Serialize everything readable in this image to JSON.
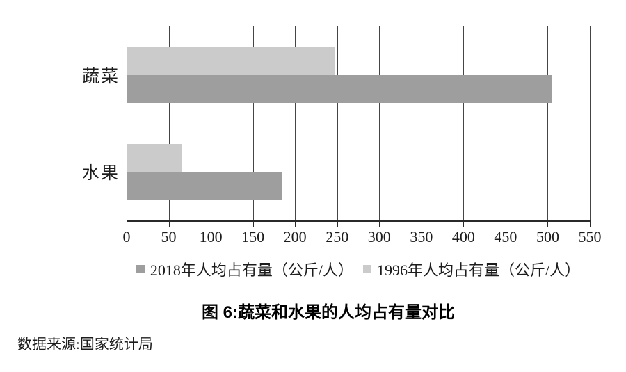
{
  "title": "图 6:蔬菜和水果的人均占有量对比",
  "source": "数据来源:国家统计局",
  "chart_data": {
    "type": "bar",
    "orientation": "horizontal",
    "title": "图 6:蔬菜和水果的人均占有量对比",
    "categories": [
      "蔬菜",
      "水果"
    ],
    "series": [
      {
        "name": "2018年人均占有量（公斤/人）",
        "color": "#9e9e9e",
        "values": [
          505,
          185
        ]
      },
      {
        "name": "1996年人均占有量（公斤/人）",
        "color": "#cbcbcb",
        "values": [
          248,
          66
        ]
      }
    ],
    "xlim": [
      0,
      550
    ],
    "xticks": [
      0,
      50,
      100,
      150,
      200,
      250,
      300,
      350,
      400,
      450,
      500,
      550
    ],
    "grid": true,
    "gridline_color": "#454545",
    "legend_position": "bottom",
    "source": "数据来源:国家统计局"
  }
}
